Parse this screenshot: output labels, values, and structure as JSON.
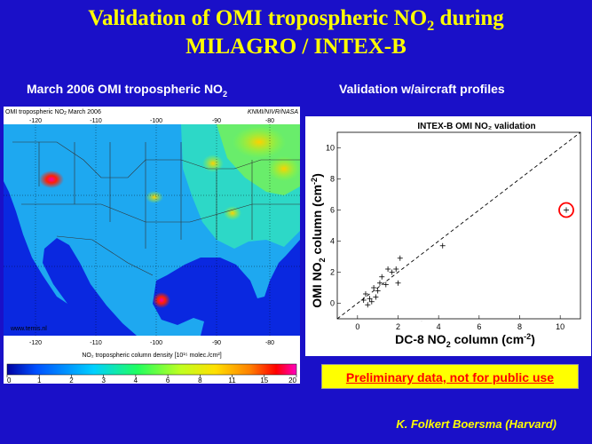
{
  "title": {
    "line1_pre": "Validation of OMI tropospheric NO",
    "line1_sub": "2",
    "line1_post": " during",
    "line2": "MILAGRO / INTEX-B"
  },
  "left_panel": {
    "heading_pre": "March 2006 OMI tropospheric NO",
    "heading_sub": "2",
    "map_title_pre": "OMI tropospheric NO",
    "map_title_sub": "2",
    "map_title_post": "  March 2006",
    "map_credit": "KNMI/NIVR/NASA",
    "map_website": "www.temis.nl",
    "lon_ticks": [
      "-120",
      "-110",
      "-100",
      "-90",
      "-80"
    ],
    "colorbar_label": "NO₂ tropospheric column density [10¹⁵ molec./cm²]",
    "colorbar_ticks": [
      "0",
      "1",
      "2",
      "3",
      "4",
      "6",
      "8",
      "11",
      "15",
      "20"
    ]
  },
  "right_panel": {
    "heading": "Validation w/aircraft profiles"
  },
  "chart_data": {
    "type": "scatter",
    "title": "INTEX-B OMI NO₂ validation",
    "xlabel_pre": "DC-8 NO",
    "xlabel_sub": "2",
    "xlabel_post": " column (cm",
    "xlabel_sup": "-2",
    "xlabel_end": ")",
    "ylabel_pre": "OMI NO",
    "ylabel_sub": "2",
    "ylabel_post": " column (cm",
    "ylabel_sup": "-2",
    "ylabel_end": ")",
    "xlim": [
      -1,
      11
    ],
    "ylim": [
      -1,
      11
    ],
    "xticks": [
      0,
      2,
      4,
      6,
      8,
      10
    ],
    "yticks": [
      0,
      2,
      4,
      6,
      8,
      10
    ],
    "one_to_one_line": true,
    "points": [
      {
        "x": 0.3,
        "y": 0.2
      },
      {
        "x": 0.4,
        "y": 0.6
      },
      {
        "x": 0.5,
        "y": -0.1
      },
      {
        "x": 0.6,
        "y": 0.3
      },
      {
        "x": 0.7,
        "y": 0.1
      },
      {
        "x": 0.8,
        "y": 1.0
      },
      {
        "x": 0.9,
        "y": 0.4
      },
      {
        "x": 1.0,
        "y": 0.8
      },
      {
        "x": 1.1,
        "y": 1.3
      },
      {
        "x": 1.2,
        "y": 1.7
      },
      {
        "x": 1.4,
        "y": 1.2
      },
      {
        "x": 1.5,
        "y": 2.2
      },
      {
        "x": 1.7,
        "y": 2.0
      },
      {
        "x": 1.9,
        "y": 2.2
      },
      {
        "x": 2.0,
        "y": 1.3
      },
      {
        "x": 2.1,
        "y": 2.9
      },
      {
        "x": 4.2,
        "y": 3.7
      },
      {
        "x": 10.3,
        "y": 6.0
      }
    ],
    "highlighted_point": {
      "x": 10.3,
      "y": 6.0
    },
    "highlight_color": "#ff0000"
  },
  "notice": "Preliminary data, not for public use",
  "author": "K. Folkert Boersma (Harvard)",
  "colors": {
    "background": "#1a10c8",
    "title": "#ffff00",
    "notice_bg": "#ffff00",
    "notice_text": "#ff0000"
  }
}
